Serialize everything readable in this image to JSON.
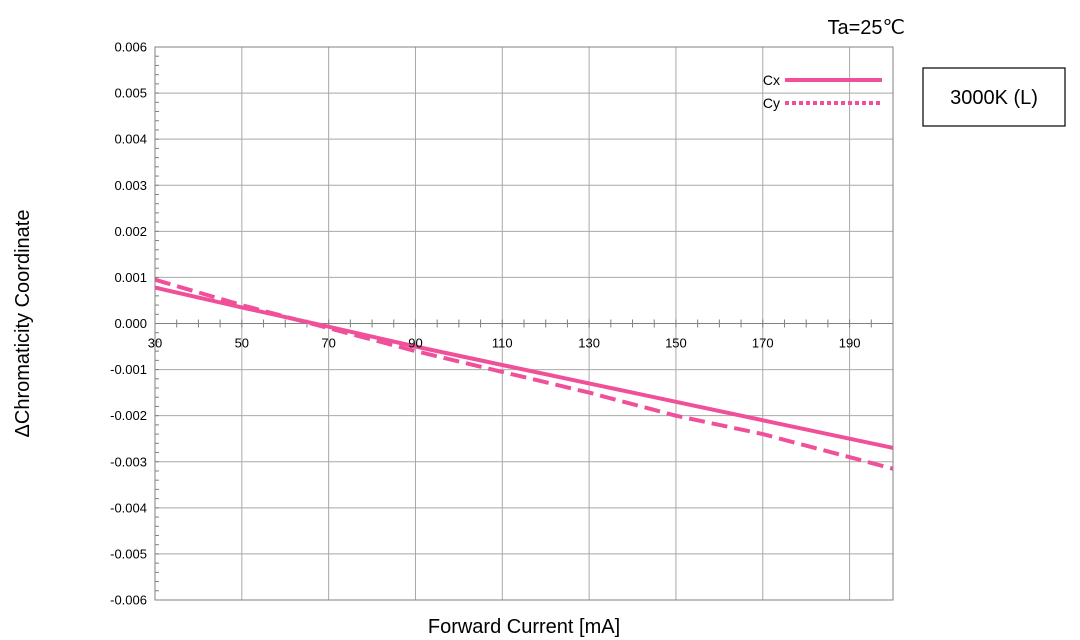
{
  "chart_data": {
    "type": "line",
    "condition": "Ta=25℃",
    "badge": "3000K (L)",
    "xlabel": "Forward Current [mA]",
    "ylabel": "ΔChromaticity Coordinate",
    "xlim": [
      30,
      200
    ],
    "ylim": [
      -0.006,
      0.006
    ],
    "x_ticks": [
      30,
      50,
      70,
      90,
      110,
      130,
      150,
      170,
      190
    ],
    "y_ticks": [
      0.006,
      0.005,
      0.004,
      0.003,
      0.002,
      0.001,
      0.0,
      -0.001,
      -0.002,
      -0.003,
      -0.004,
      -0.005,
      -0.006
    ],
    "x_tick_labels": [
      "30",
      "50",
      "70",
      "90",
      "110",
      "130",
      "150",
      "170",
      "190"
    ],
    "y_tick_labels": [
      "0.006",
      "0.005",
      "0.004",
      "0.003",
      "0.002",
      "0.001",
      "0.000",
      "-0.001",
      "-0.002",
      "-0.003",
      "-0.004",
      "-0.005",
      "-0.006"
    ],
    "grid": true,
    "legend_position": "top-right",
    "series": [
      {
        "name": "Cx",
        "style": "solid",
        "color": "#F0509A",
        "x": [
          30,
          50,
          70,
          90,
          110,
          130,
          150,
          170,
          200
        ],
        "y": [
          0.00078,
          0.00035,
          -7e-05,
          -0.0005,
          -0.0009,
          -0.0013,
          -0.0017,
          -0.0021,
          -0.0027
        ]
      },
      {
        "name": "Cy",
        "style": "dashed",
        "color": "#F0509A",
        "x": [
          30,
          50,
          70,
          90,
          110,
          130,
          150,
          170,
          200
        ],
        "y": [
          0.00095,
          0.0004,
          -0.0001,
          -0.0006,
          -0.00105,
          -0.0015,
          -0.002,
          -0.0024,
          -0.00315
        ]
      }
    ]
  }
}
